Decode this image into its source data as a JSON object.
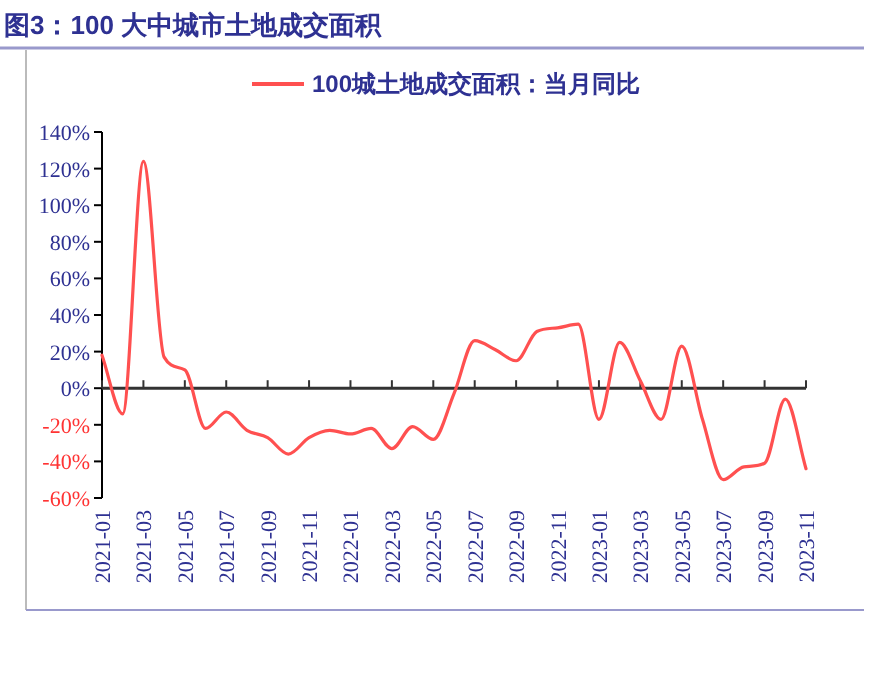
{
  "chart_data": {
    "type": "line",
    "title": "图3：100 大中城市土地成交面积",
    "categories": [
      "2021-01",
      null,
      "2021-03",
      null,
      "2021-05",
      null,
      "2021-07",
      null,
      "2021-09",
      null,
      "2021-11",
      null,
      "2022-01",
      null,
      "2022-03",
      null,
      "2022-05",
      null,
      "2022-07",
      null,
      "2022-09",
      null,
      "2022-11",
      null,
      "2023-01",
      null,
      "2023-03",
      null,
      "2023-05",
      null,
      "2023-07",
      null,
      "2023-09",
      null,
      "2023-11"
    ],
    "series": [
      {
        "name": "100城土地成交面积：当月同比",
        "color": "#ff5050",
        "values": [
          18,
          -14,
          124,
          17,
          10,
          -22,
          -13,
          -23,
          -27,
          -36,
          -27,
          -23,
          -25,
          -22,
          -33,
          -21,
          -28,
          -3,
          26,
          21,
          15,
          31,
          33,
          35,
          -17,
          25,
          4,
          -17,
          23,
          -17,
          -50,
          -43,
          -41,
          -6,
          -44
        ]
      }
    ],
    "ylim": [
      -60,
      140
    ],
    "yticks": [
      {
        "value": -60,
        "label": "-60%"
      },
      {
        "value": -40,
        "label": "-40%"
      },
      {
        "value": -20,
        "label": "-20%"
      },
      {
        "value": 0,
        "label": "0%"
      },
      {
        "value": 20,
        "label": "20%"
      },
      {
        "value": 40,
        "label": "40%"
      },
      {
        "value": 60,
        "label": "60%"
      },
      {
        "value": 80,
        "label": "80%"
      },
      {
        "value": 100,
        "label": "100%"
      },
      {
        "value": 120,
        "label": "120%"
      },
      {
        "value": 140,
        "label": "140%"
      }
    ],
    "legend": "top",
    "marker": "none",
    "line_style": "solid"
  }
}
